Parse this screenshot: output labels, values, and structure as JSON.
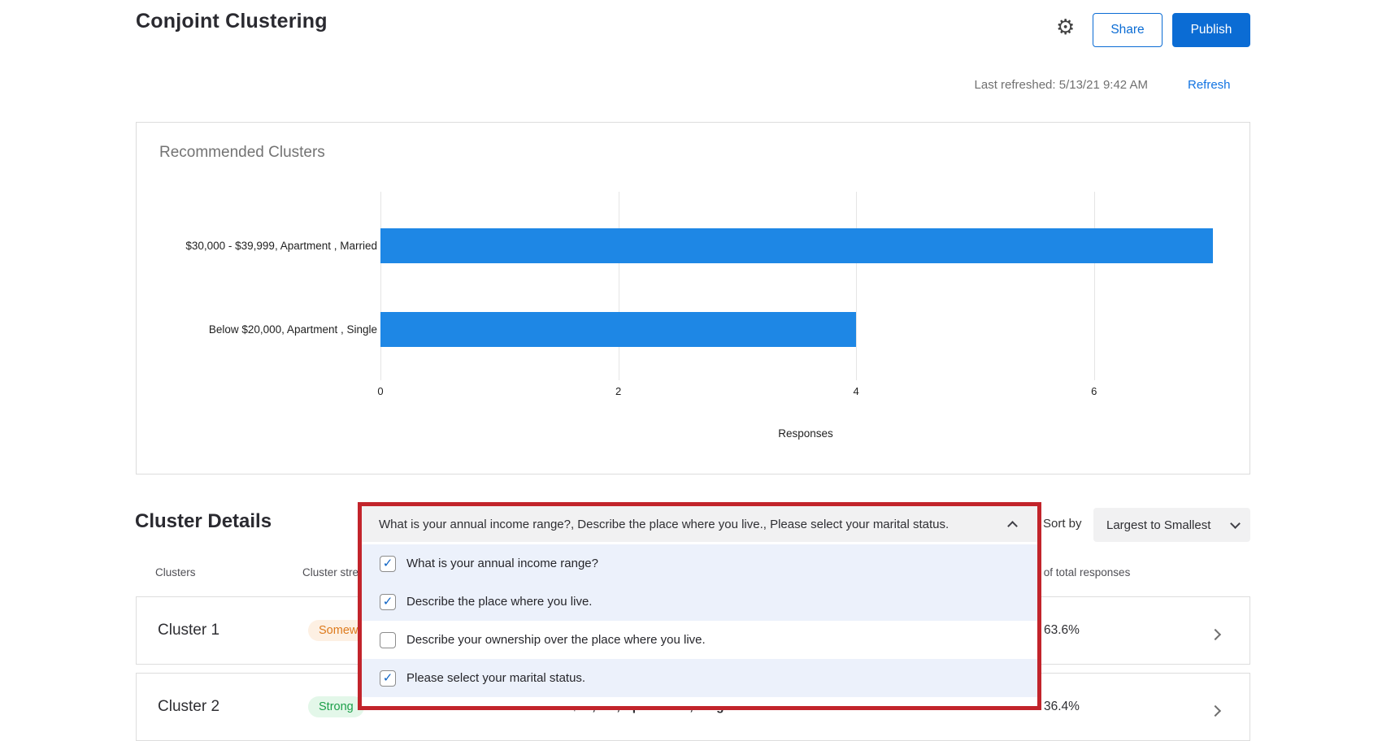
{
  "header": {
    "title": "Conjoint Clustering",
    "share_label": "Share",
    "publish_label": "Publish",
    "last_refreshed": "Last refreshed: 5/13/21 9:42 AM",
    "refresh_label": "Refresh"
  },
  "chart_data": {
    "type": "bar",
    "orientation": "horizontal",
    "title": "Recommended Clusters",
    "categories": [
      "$30,000 - $39,999, Apartment , Married",
      "Below $20,000, Apartment , Single"
    ],
    "values": [
      7,
      4
    ],
    "xlabel": "Responses",
    "ylabel": "",
    "xticks": [
      0,
      2,
      4,
      6
    ],
    "xlim": [
      0,
      7.15
    ],
    "grid": true,
    "legend": false,
    "bar_color": "#1e87e5"
  },
  "cluster_details": {
    "title": "Cluster Details",
    "question_dropdown": {
      "value": "What is your annual income range?, Describe the place where you live., Please select your marital status.",
      "options": [
        {
          "label": "What is your annual income range?",
          "checked": true
        },
        {
          "label": "Describe the place where you live.",
          "checked": true
        },
        {
          "label": "Describe your ownership over the place where you live.",
          "checked": false
        },
        {
          "label": "Please select your marital status.",
          "checked": true
        }
      ]
    },
    "sort": {
      "label": "Sort by",
      "value": "Largest to Smallest"
    },
    "table": {
      "headers": {
        "clusters": "Clusters",
        "strength": "Cluster strength",
        "percent": "% of total responses"
      },
      "rows": [
        {
          "name": "Cluster 1",
          "strength": "Somewhat strong",
          "strength_level": "somewhat",
          "percent": "63.6%"
        },
        {
          "name": "Cluster 2",
          "strength": "Strong",
          "strength_level": "strong",
          "segment": "Below $20,000, Apartment , Single",
          "percent": "36.4%"
        }
      ]
    }
  },
  "colors": {
    "accent_blue": "#0b6cd4",
    "bar_blue": "#1e87e5",
    "highlight_red": "#c2242b",
    "strength_orange": "#dd7a1c",
    "strength_green": "#1ca04a"
  }
}
